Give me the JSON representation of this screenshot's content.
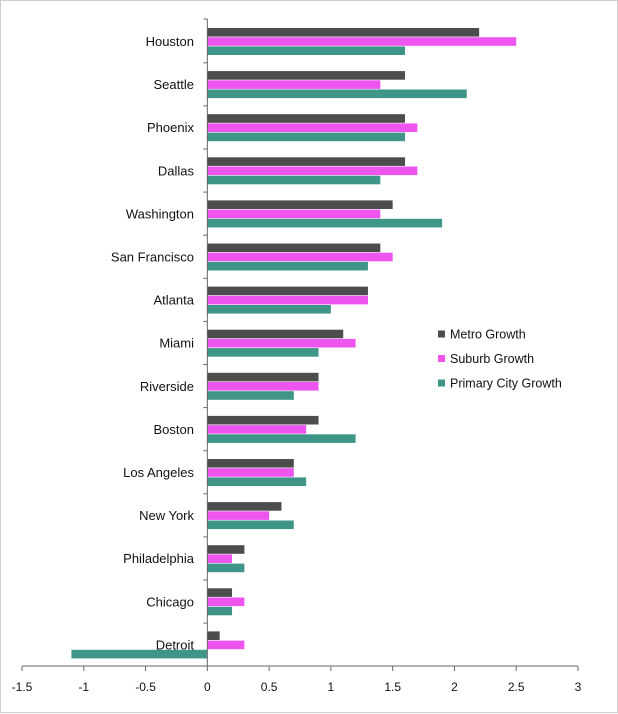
{
  "chart_data": {
    "type": "bar",
    "orientation": "horizontal",
    "categories": [
      "Houston",
      "Seattle",
      "Phoenix",
      "Dallas",
      "Washington",
      "San Francisco",
      "Atlanta",
      "Miami",
      "Riverside",
      "Boston",
      "Los Angeles",
      "New York",
      "Philadelphia",
      "Chicago",
      "Detroit"
    ],
    "series": [
      {
        "name": "Metro Growth",
        "color": "#4d4d4d",
        "values": [
          2.2,
          1.6,
          1.6,
          1.6,
          1.5,
          1.4,
          1.3,
          1.1,
          0.9,
          0.9,
          0.7,
          0.6,
          0.3,
          0.2,
          0.1
        ]
      },
      {
        "name": "Suburb Growth",
        "color": "#ee55ee",
        "values": [
          2.5,
          1.4,
          1.7,
          1.7,
          1.4,
          1.5,
          1.3,
          1.2,
          0.9,
          0.8,
          0.7,
          0.5,
          0.2,
          0.3,
          0.3
        ]
      },
      {
        "name": "Primary City Growth",
        "color": "#3f9688",
        "values": [
          1.6,
          2.1,
          1.6,
          1.4,
          1.9,
          1.3,
          1.0,
          0.9,
          0.7,
          1.2,
          0.8,
          0.7,
          0.3,
          0.2,
          -1.1
        ]
      }
    ],
    "x_ticks": [
      "-1.5",
      "-1",
      "-0.5",
      "0",
      "0.5",
      "1",
      "1.5",
      "2",
      "2.5",
      "3"
    ],
    "xlim": [
      -1.5,
      3
    ],
    "title": "",
    "xlabel": "",
    "ylabel": "",
    "grid": false,
    "legend_position": "right"
  }
}
